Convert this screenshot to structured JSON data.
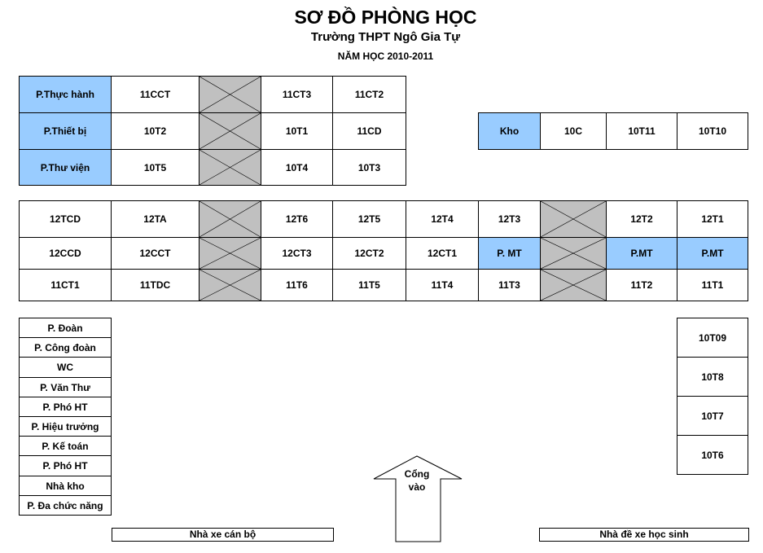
{
  "title": "SƠ ĐỒ PHÒNG HỌC",
  "subtitle": "Trường THPT Ngô Gia Tự",
  "year": "NĂM HỌC 2010-2011",
  "colors": {
    "special_room": "#99ccff",
    "unused": "#c0c0c0"
  },
  "top_block": [
    [
      {
        "label": "P.Thực hành",
        "special": true
      },
      {
        "label": "11CCT"
      },
      {
        "crossed": true
      },
      {
        "label": "11CT3"
      },
      {
        "label": "11CT2"
      }
    ],
    [
      {
        "label": "P.Thiết bị",
        "special": true
      },
      {
        "label": "10T2"
      },
      {
        "crossed": true
      },
      {
        "label": "10T1"
      },
      {
        "label": "11CD"
      }
    ],
    [
      {
        "label": "P.Thư viện",
        "special": true
      },
      {
        "label": "10T5"
      },
      {
        "crossed": true
      },
      {
        "label": "10T4"
      },
      {
        "label": "10T3"
      }
    ]
  ],
  "kho_block": [
    {
      "label": "Kho",
      "special": true
    },
    {
      "label": "10C"
    },
    {
      "label": "10T11"
    },
    {
      "label": "10T10"
    }
  ],
  "middle_block": [
    [
      {
        "label": "12TCD"
      },
      {
        "label": "12TA"
      },
      {
        "crossed": true
      },
      {
        "label": "12T6"
      },
      {
        "label": "12T5"
      },
      {
        "label": "12T4"
      },
      {
        "label": "12T3"
      },
      {
        "crossed": true
      },
      {
        "label": "12T2"
      },
      {
        "label": "12T1"
      }
    ],
    [
      {
        "label": "12CCD"
      },
      {
        "label": "12CCT"
      },
      {
        "crossed": true
      },
      {
        "label": "12CT3"
      },
      {
        "label": "12CT2"
      },
      {
        "label": "12CT1"
      },
      {
        "label": "P. MT",
        "special": true
      },
      {
        "crossed": true
      },
      {
        "label": "P.MT",
        "special": true
      },
      {
        "label": "P.MT",
        "special": true
      }
    ],
    [
      {
        "label": "11CT1"
      },
      {
        "label": "11TDC"
      },
      {
        "crossed": true
      },
      {
        "label": "11T6"
      },
      {
        "label": "11T5"
      },
      {
        "label": "11T4"
      },
      {
        "label": "11T3"
      },
      {
        "crossed": true
      },
      {
        "label": "11T2"
      },
      {
        "label": "11T1"
      }
    ]
  ],
  "office_list": [
    "P. Đoàn",
    "P. Công đoàn",
    "WC",
    "P. Văn Thư",
    "P. Phó HT",
    "P. Hiệu trưởng",
    "P. Kế toán",
    "P. Phó HT",
    "Nhà kho",
    "P. Đa chức năng"
  ],
  "right_list": [
    "10T09",
    "10T8",
    "10T7",
    "10T6"
  ],
  "staff_parking": "Nhà xe cán bộ",
  "student_parking": "Nhà đề xe học sinh",
  "gate": {
    "line1": "Cổng",
    "line2": "vào"
  }
}
